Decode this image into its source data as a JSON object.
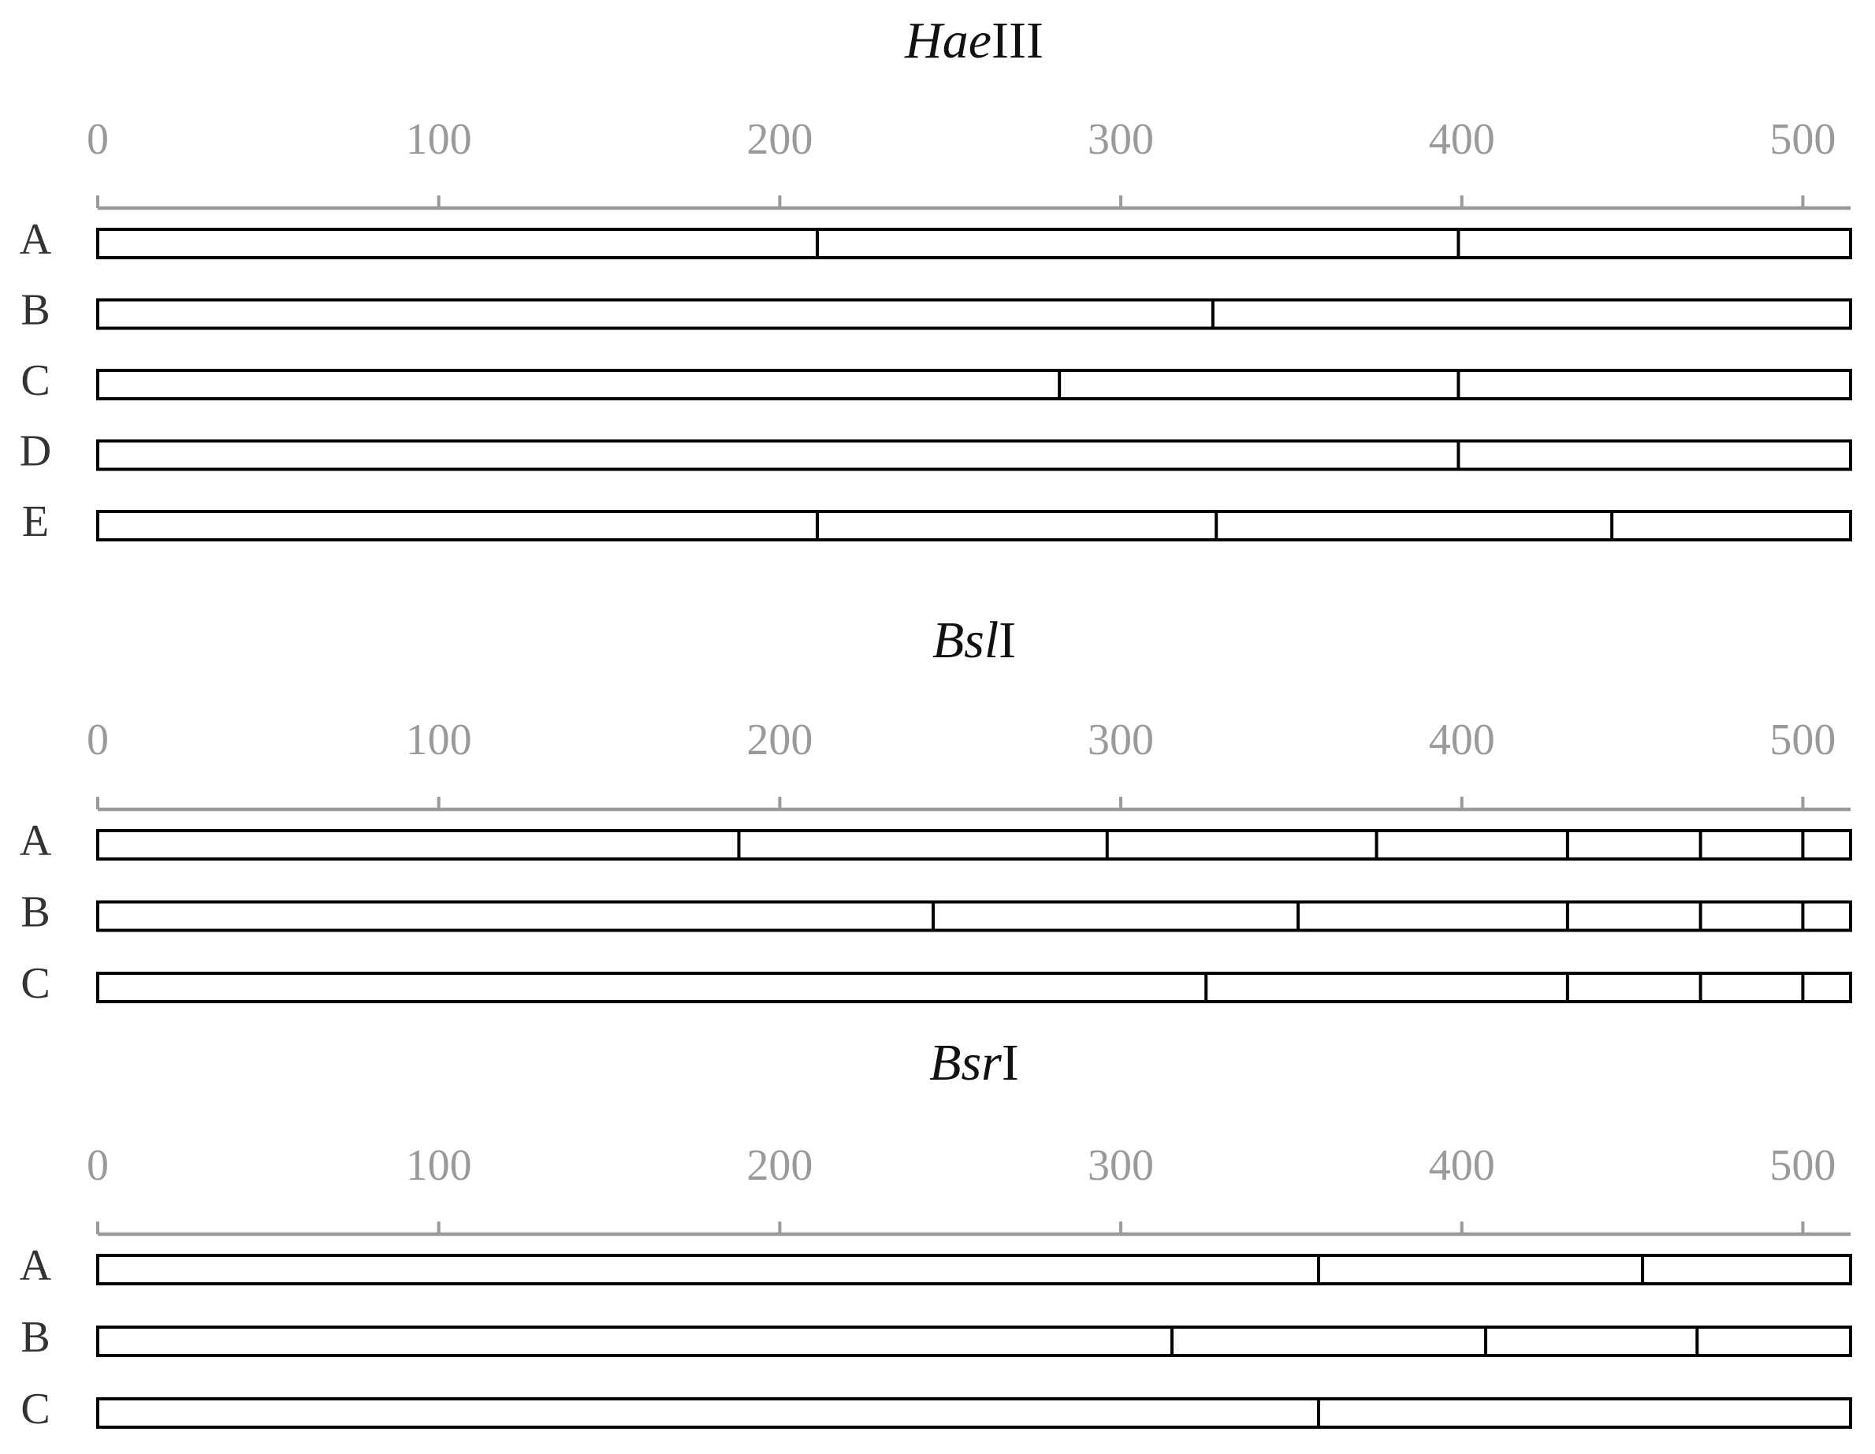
{
  "chart_data": [
    {
      "type": "restriction-map",
      "title": {
        "italic": "Hae",
        "roman": "III"
      },
      "xlim": [
        0,
        514
      ],
      "xticks": [
        0,
        100,
        200,
        300,
        400,
        500
      ],
      "color": "#000000",
      "series": [
        {
          "name": "A",
          "values": [
            211,
            399
          ]
        },
        {
          "name": "B",
          "values": [
            327
          ]
        },
        {
          "name": "C",
          "values": [
            282,
            399
          ]
        },
        {
          "name": "D",
          "values": [
            399
          ]
        },
        {
          "name": "E",
          "values": [
            211,
            328,
            444
          ]
        }
      ]
    },
    {
      "type": "restriction-map",
      "title": {
        "italic": "Bsl",
        "roman": "I"
      },
      "xlim": [
        0,
        514
      ],
      "xticks": [
        0,
        100,
        200,
        300,
        400,
        500
      ],
      "color": "#000000",
      "series": [
        {
          "name": "A",
          "values": [
            188,
            296,
            375,
            431,
            470,
            500
          ]
        },
        {
          "name": "B",
          "values": [
            245,
            352,
            431,
            470,
            500
          ]
        },
        {
          "name": "C",
          "values": [
            325,
            431,
            470,
            500
          ]
        }
      ]
    },
    {
      "type": "restriction-map",
      "title": {
        "italic": "Bsr",
        "roman": "I"
      },
      "xlim": [
        0,
        514
      ],
      "xticks": [
        0,
        100,
        200,
        300,
        400,
        500
      ],
      "color": "#000000",
      "series": [
        {
          "name": "A",
          "values": [
            358,
            453
          ]
        },
        {
          "name": "B",
          "values": [
            315,
            407,
            469
          ]
        },
        {
          "name": "C",
          "values": [
            358
          ]
        }
      ]
    }
  ]
}
